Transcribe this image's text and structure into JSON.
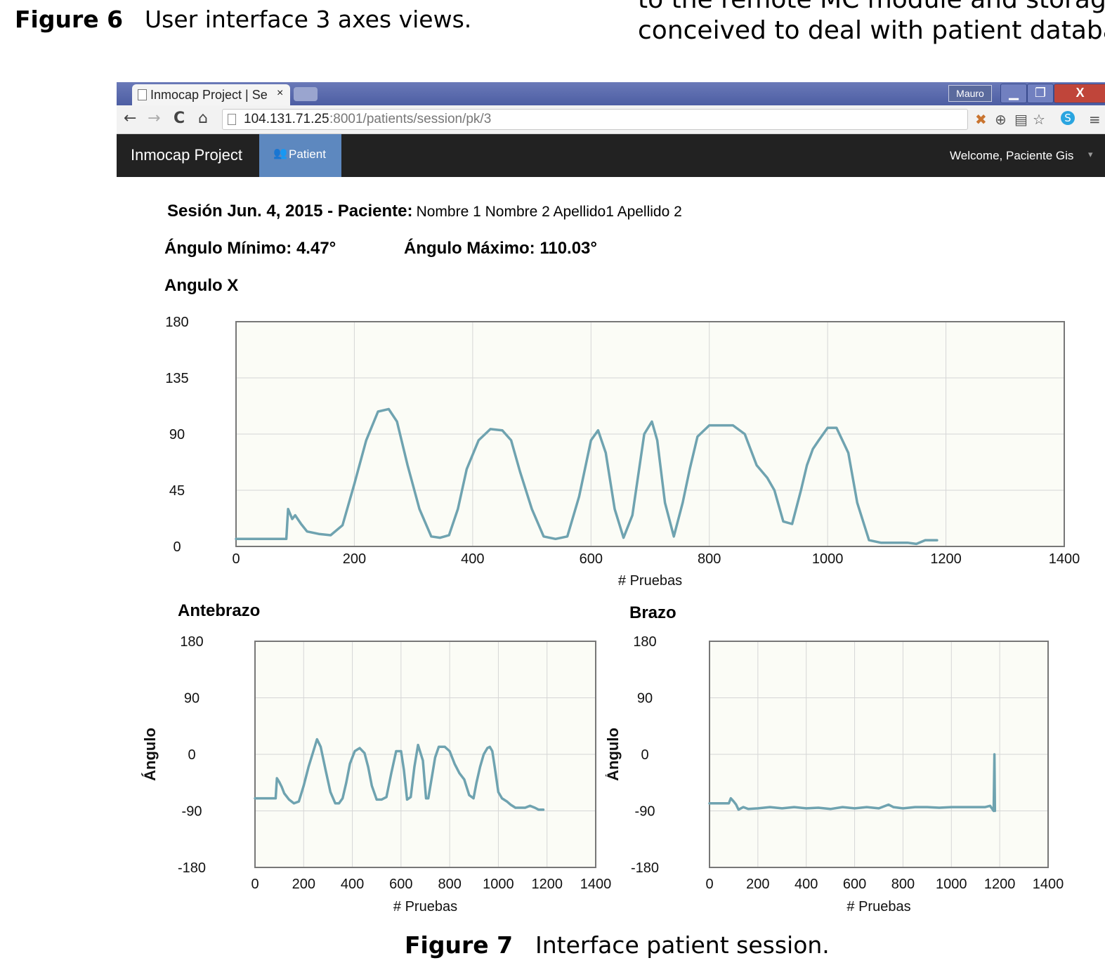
{
  "figure6": {
    "label": "Figure 6",
    "text": "User interface 3 axes views."
  },
  "right_column": {
    "line1": "to the remote MC module and storage c",
    "line2": "conceived to deal with patient databas"
  },
  "browser": {
    "tab_title": "Inmocap Project | Se",
    "tab_close": "×",
    "user": "Mauro",
    "url_host": "104.131.71.25",
    "url_path": ":8001/patients/session/pk/3",
    "nav": {
      "back": "←",
      "forward": "→",
      "reload": "C",
      "home": "⌂"
    }
  },
  "navbar": {
    "brand": "Inmocap Project",
    "patient_tab": "Patient",
    "welcome": "Welcome, Paciente Gis"
  },
  "session": {
    "title_prefix": "Sesión Jun. 4, 2015 - Paciente:",
    "patient_name": "Nombre 1 Nombre 2 Apellido1 Apellido 2",
    "min_angle": "Ángulo Mínimo: 4.47°",
    "max_angle": "Ángulo Máximo: 110.03°"
  },
  "chart_data": [
    {
      "type": "line",
      "title": "Angulo X",
      "xlabel": "# Pruebas",
      "ylabel": "",
      "xlim": [
        0,
        1400
      ],
      "ylim": [
        0,
        180
      ],
      "xticks": [
        0,
        200,
        400,
        600,
        800,
        1000,
        1200,
        1400
      ],
      "yticks": [
        0,
        45,
        90,
        135,
        180
      ],
      "color": "#6fa3b0",
      "grid": true,
      "x": [
        0,
        85,
        88,
        95,
        100,
        110,
        120,
        140,
        160,
        180,
        200,
        220,
        240,
        258,
        272,
        290,
        310,
        330,
        345,
        360,
        375,
        390,
        410,
        430,
        450,
        465,
        480,
        500,
        520,
        540,
        560,
        580,
        600,
        612,
        625,
        640,
        655,
        670,
        690,
        703,
        712,
        725,
        740,
        755,
        767,
        780,
        800,
        820,
        840,
        860,
        880,
        898,
        910,
        925,
        940,
        955,
        965,
        975,
        985,
        1000,
        1015,
        1035,
        1050,
        1070,
        1090,
        1110,
        1135,
        1150,
        1165,
        1185
      ],
      "y": [
        6,
        6,
        30,
        22,
        25,
        18,
        12,
        10,
        9,
        17,
        50,
        85,
        108,
        110,
        100,
        65,
        30,
        8,
        7,
        9,
        30,
        62,
        85,
        94,
        93,
        85,
        60,
        30,
        8,
        6,
        8,
        40,
        85,
        93,
        75,
        30,
        7,
        25,
        90,
        100,
        85,
        35,
        8,
        35,
        62,
        88,
        97,
        97,
        97,
        90,
        65,
        55,
        45,
        20,
        18,
        45,
        65,
        78,
        85,
        95,
        95,
        75,
        35,
        5,
        3,
        3,
        3,
        2,
        5,
        5
      ]
    },
    {
      "type": "line",
      "title": "Antebrazo",
      "xlabel": "# Pruebas",
      "ylabel": "Ángulo",
      "xlim": [
        0,
        1400
      ],
      "ylim": [
        -180,
        180
      ],
      "xticks": [
        0,
        200,
        400,
        600,
        800,
        1000,
        1200,
        1400
      ],
      "yticks": [
        -180,
        -90,
        0,
        90,
        180
      ],
      "color": "#6fa3b0",
      "grid": true,
      "x": [
        0,
        85,
        90,
        100,
        110,
        120,
        140,
        160,
        180,
        200,
        220,
        240,
        255,
        270,
        290,
        310,
        330,
        345,
        360,
        375,
        390,
        410,
        430,
        450,
        465,
        480,
        500,
        520,
        540,
        560,
        580,
        600,
        612,
        625,
        640,
        655,
        670,
        690,
        703,
        712,
        725,
        740,
        755,
        767,
        780,
        800,
        820,
        840,
        860,
        880,
        898,
        910,
        925,
        940,
        955,
        965,
        975,
        985,
        1000,
        1015,
        1035,
        1050,
        1070,
        1090,
        1110,
        1130,
        1150,
        1165,
        1185
      ],
      "y": [
        -70,
        -70,
        -38,
        -44,
        -52,
        -62,
        -72,
        -78,
        -75,
        -50,
        -20,
        5,
        24,
        12,
        -25,
        -60,
        -78,
        -78,
        -70,
        -45,
        -15,
        5,
        10,
        2,
        -20,
        -50,
        -72,
        -72,
        -68,
        -30,
        5,
        5,
        -25,
        -72,
        -68,
        -20,
        15,
        -10,
        -70,
        -70,
        -40,
        -5,
        12,
        12,
        12,
        5,
        -15,
        -30,
        -40,
        -65,
        -70,
        -45,
        -20,
        0,
        10,
        12,
        5,
        -20,
        -60,
        -70,
        -75,
        -80,
        -85,
        -85,
        -85,
        -82,
        -85,
        -88,
        -88
      ]
    },
    {
      "type": "line",
      "title": "Brazo",
      "xlabel": "# Pruebas",
      "ylabel": "Ángulo",
      "xlim": [
        0,
        1400
      ],
      "ylim": [
        -180,
        180
      ],
      "xticks": [
        0,
        200,
        400,
        600,
        800,
        1000,
        1200,
        1400
      ],
      "yticks": [
        -180,
        -90,
        0,
        90,
        180
      ],
      "color": "#6fa3b0",
      "grid": true,
      "x": [
        0,
        10,
        80,
        88,
        100,
        110,
        120,
        140,
        160,
        200,
        250,
        300,
        350,
        400,
        450,
        500,
        550,
        600,
        650,
        700,
        740,
        760,
        800,
        850,
        900,
        950,
        1000,
        1050,
        1100,
        1140,
        1160,
        1175,
        1178,
        1180
      ],
      "y": [
        -78,
        -78,
        -78,
        -70,
        -75,
        -80,
        -88,
        -84,
        -87,
        -86,
        -84,
        -86,
        -84,
        -86,
        -85,
        -87,
        -84,
        -86,
        -84,
        -86,
        -80,
        -84,
        -86,
        -84,
        -84,
        -85,
        -84,
        -84,
        -84,
        -84,
        -82,
        -90,
        0,
        -90
      ]
    }
  ],
  "figure7": {
    "label": "Figure 7",
    "text": "Interface patient session."
  }
}
